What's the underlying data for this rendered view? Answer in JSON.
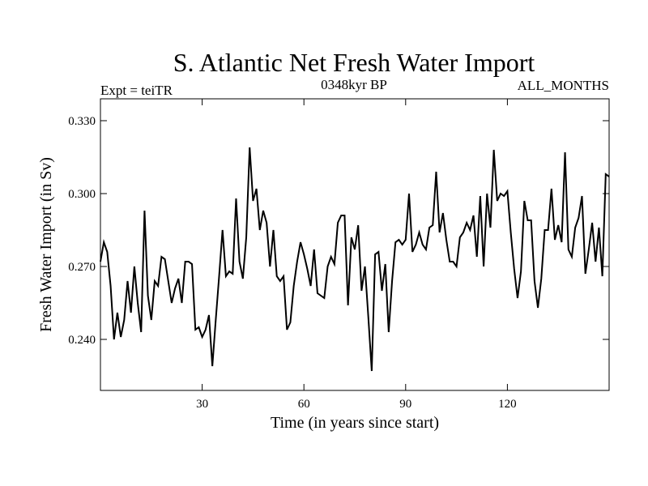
{
  "chart_data": {
    "type": "line",
    "title": "S. Atlantic Net Fresh Water Import",
    "subtitle_left": "Expt = teiTR",
    "subtitle_center": "0348kyr BP",
    "subtitle_right": "ALL_MONTHS",
    "xlabel": "Time (in years since start)",
    "ylabel": "Fresh Water Import (in Sv)",
    "xlim": [
      0,
      150
    ],
    "ylim": [
      0.219,
      0.339
    ],
    "xticks": [
      30,
      60,
      90,
      120
    ],
    "xtick_labels": [
      "30",
      "60",
      "90",
      "120"
    ],
    "yticks": [
      0.24,
      0.27,
      0.3,
      0.33
    ],
    "ytick_labels": [
      "0.240",
      "0.270",
      "0.300",
      "0.330"
    ],
    "series": [
      {
        "name": "fresh_water_import",
        "color": "#000000",
        "x": [
          0,
          1,
          2,
          3,
          4,
          5,
          6,
          7,
          8,
          9,
          10,
          11,
          12,
          13,
          14,
          15,
          16,
          17,
          18,
          19,
          20,
          21,
          22,
          23,
          24,
          25,
          26,
          27,
          28,
          29,
          30,
          31,
          32,
          33,
          34,
          35,
          36,
          37,
          38,
          39,
          40,
          41,
          42,
          43,
          44,
          45,
          46,
          47,
          48,
          49,
          50,
          51,
          52,
          53,
          54,
          55,
          56,
          57,
          58,
          59,
          60,
          61,
          62,
          63,
          64,
          65,
          66,
          67,
          68,
          69,
          70,
          71,
          72,
          73,
          74,
          75,
          76,
          77,
          78,
          79,
          80,
          81,
          82,
          83,
          84,
          85,
          86,
          87,
          88,
          89,
          90,
          91,
          92,
          93,
          94,
          95,
          96,
          97,
          98,
          99,
          100,
          101,
          102,
          103,
          104,
          105,
          106,
          107,
          108,
          109,
          110,
          111,
          112,
          113,
          114,
          115,
          116,
          117,
          118,
          119,
          120,
          121,
          122,
          123,
          124,
          125,
          126,
          127,
          128,
          129,
          130,
          131,
          132,
          133,
          134,
          135,
          136,
          137,
          138,
          139,
          140,
          141,
          142,
          143,
          144,
          145,
          146,
          147,
          148,
          149,
          150
        ],
        "values": [
          0.272,
          0.28,
          0.276,
          0.262,
          0.24,
          0.251,
          0.241,
          0.248,
          0.264,
          0.251,
          0.27,
          0.255,
          0.243,
          0.293,
          0.258,
          0.248,
          0.264,
          0.262,
          0.274,
          0.273,
          0.264,
          0.255,
          0.261,
          0.265,
          0.255,
          0.272,
          0.272,
          0.271,
          0.244,
          0.245,
          0.241,
          0.244,
          0.25,
          0.229,
          0.248,
          0.266,
          0.285,
          0.266,
          0.268,
          0.267,
          0.298,
          0.272,
          0.265,
          0.282,
          0.319,
          0.297,
          0.302,
          0.285,
          0.293,
          0.288,
          0.27,
          0.285,
          0.266,
          0.264,
          0.266,
          0.244,
          0.247,
          0.262,
          0.272,
          0.28,
          0.275,
          0.269,
          0.262,
          0.277,
          0.259,
          0.258,
          0.257,
          0.27,
          0.274,
          0.271,
          0.288,
          0.291,
          0.291,
          0.254,
          0.282,
          0.277,
          0.287,
          0.26,
          0.27,
          0.249,
          0.227,
          0.275,
          0.276,
          0.26,
          0.271,
          0.243,
          0.264,
          0.28,
          0.281,
          0.279,
          0.281,
          0.3,
          0.276,
          0.279,
          0.284,
          0.279,
          0.277,
          0.286,
          0.287,
          0.309,
          0.284,
          0.292,
          0.281,
          0.272,
          0.272,
          0.27,
          0.282,
          0.284,
          0.288,
          0.285,
          0.291,
          0.274,
          0.299,
          0.27,
          0.3,
          0.286,
          0.318,
          0.297,
          0.3,
          0.299,
          0.301,
          0.284,
          0.269,
          0.257,
          0.268,
          0.297,
          0.289,
          0.289,
          0.264,
          0.253,
          0.265,
          0.285,
          0.285,
          0.302,
          0.281,
          0.287,
          0.28,
          0.317,
          0.277,
          0.274,
          0.286,
          0.29,
          0.299,
          0.267,
          0.277,
          0.288,
          0.272,
          0.286,
          0.266,
          0.308,
          0.307
        ]
      }
    ]
  }
}
